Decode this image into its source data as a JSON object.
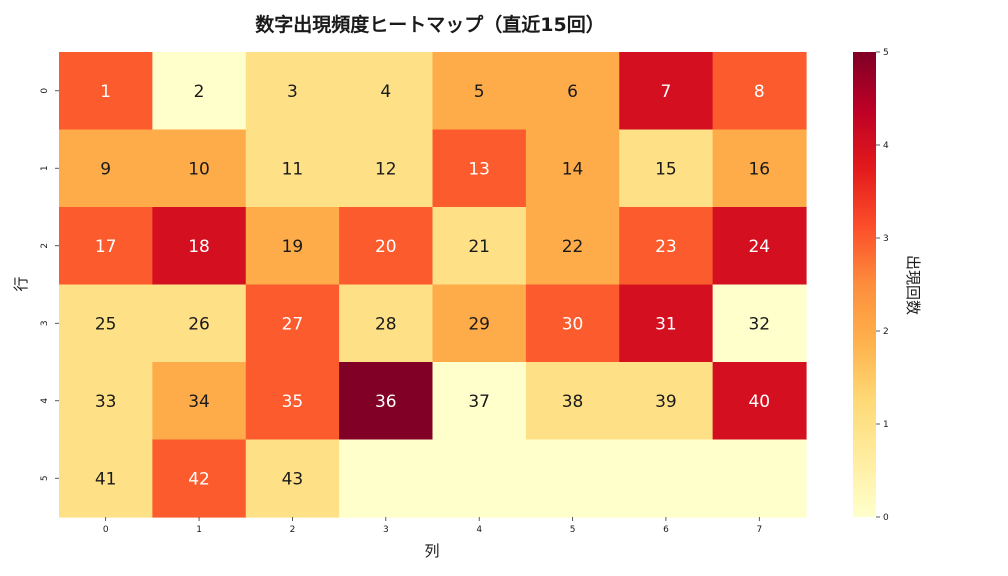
{
  "chart_data": {
    "type": "heatmap",
    "title": "数字出現頻度ヒートマップ（直近15回）",
    "xlabel": "列",
    "ylabel": "行",
    "x_ticks": [
      "0",
      "1",
      "2",
      "3",
      "4",
      "5",
      "6",
      "7"
    ],
    "y_ticks": [
      "0",
      "1",
      "2",
      "3",
      "4",
      "5"
    ],
    "colorbar": {
      "label": "出現回数",
      "range": [
        0,
        5
      ],
      "ticks": [
        "0",
        "1",
        "2",
        "3",
        "4",
        "5"
      ],
      "colormap": "YlOrRd",
      "colors": [
        "#ffffcc",
        "#ffeda0",
        "#fed976",
        "#feb24c",
        "#fd8d3c",
        "#fc4e2a",
        "#e31a1c",
        "#bd0026",
        "#800026"
      ]
    },
    "cells": [
      [
        1,
        2,
        3,
        4,
        5,
        6,
        7,
        8
      ],
      [
        9,
        10,
        11,
        12,
        13,
        14,
        15,
        16
      ],
      [
        17,
        18,
        19,
        20,
        21,
        22,
        23,
        24
      ],
      [
        25,
        26,
        27,
        28,
        29,
        30,
        31,
        32
      ],
      [
        33,
        34,
        35,
        36,
        37,
        38,
        39,
        40
      ],
      [
        41,
        42,
        43,
        null,
        null,
        null,
        null,
        null
      ]
    ],
    "values": [
      [
        3,
        0,
        1,
        1,
        2,
        2,
        4,
        3
      ],
      [
        2,
        2,
        1,
        1,
        3,
        2,
        1,
        2
      ],
      [
        3,
        4,
        2,
        3,
        1,
        2,
        3,
        4
      ],
      [
        1,
        1,
        3,
        1,
        2,
        3,
        4,
        0
      ],
      [
        1,
        2,
        3,
        5,
        0,
        1,
        1,
        4
      ],
      [
        1,
        3,
        1,
        0,
        0,
        0,
        0,
        0
      ]
    ]
  }
}
